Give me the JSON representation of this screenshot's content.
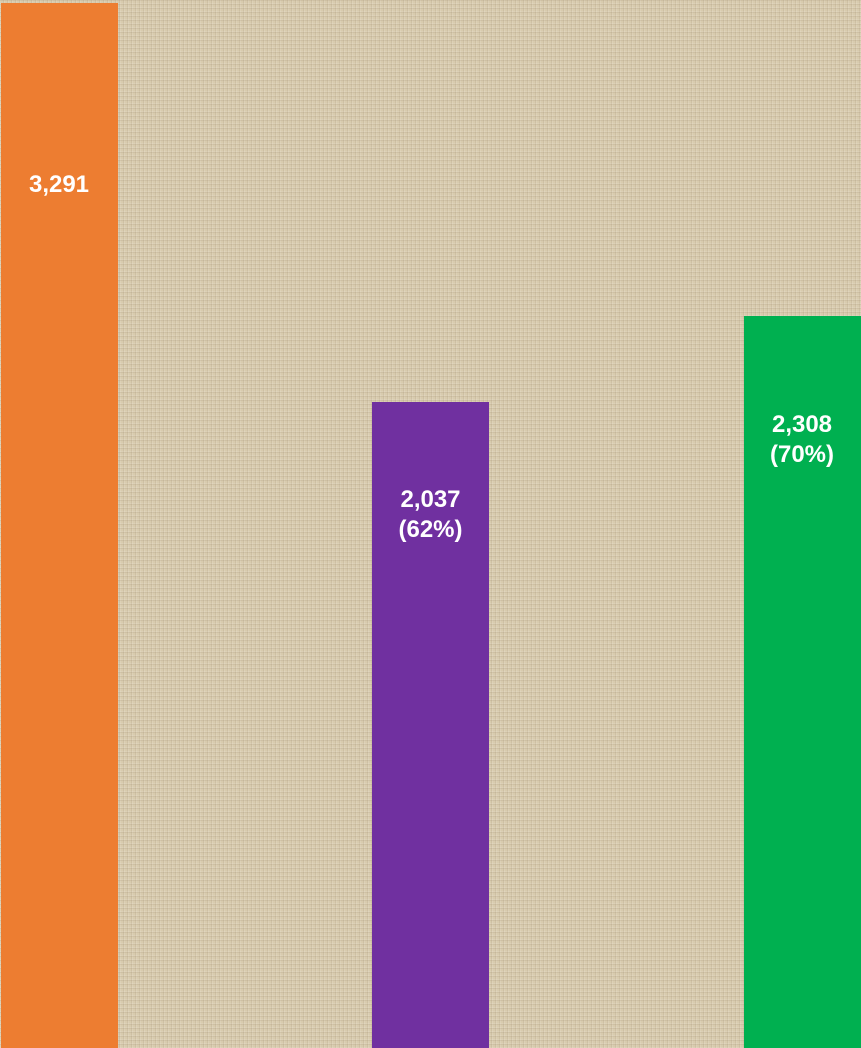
{
  "chart_data": {
    "type": "bar",
    "categories": [
      null,
      null,
      null
    ],
    "values": [
      3291,
      2037,
      2308
    ],
    "value_labels": [
      "3,291",
      "2,037\n(62%)",
      "2,308\n(70%)"
    ],
    "colors": [
      "#ed7d31",
      "#7030a0",
      "#00b050"
    ],
    "ylim": [
      0,
      3300
    ]
  }
}
